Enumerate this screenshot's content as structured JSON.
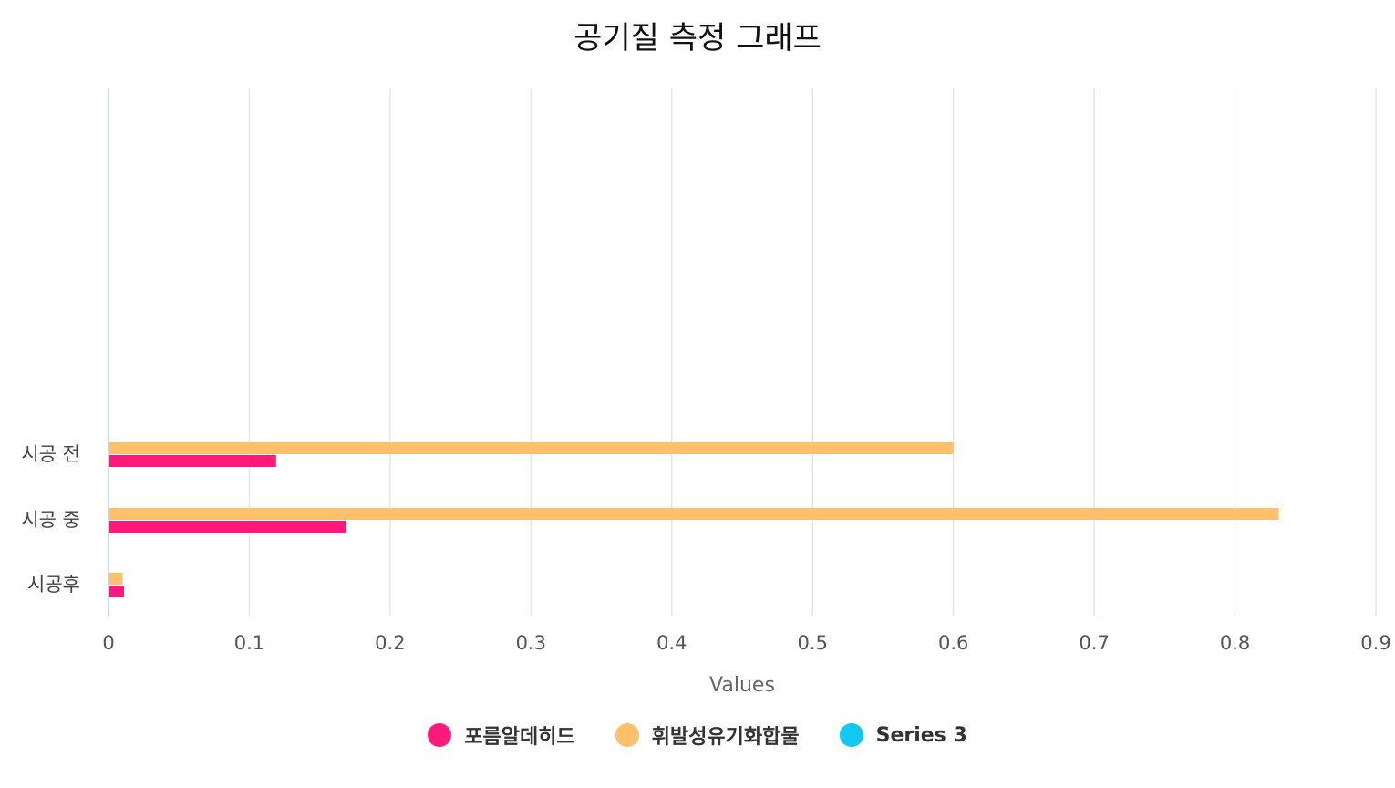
{
  "chart_data": {
    "type": "bar",
    "orientation": "horizontal",
    "title": "공기질 측정 그래프",
    "xlabel": "Values",
    "ylabel": "",
    "xlim": [
      0,
      0.9
    ],
    "x_ticks": [
      "0",
      "0.1",
      "0.2",
      "0.3",
      "0.4",
      "0.5",
      "0.6",
      "0.7",
      "0.8",
      "0.9"
    ],
    "categories": [
      "시공 전",
      "시공 중",
      "시공후"
    ],
    "series": [
      {
        "name": "포름알데히드",
        "color": "#ff1a7a",
        "values": [
          0.119,
          0.169,
          0.011
        ]
      },
      {
        "name": "휘발성유기화합물",
        "color": "#ffc06b",
        "values": [
          0.6,
          0.831,
          0.01
        ]
      },
      {
        "name": "Series 3",
        "color": "#10c8f0",
        "values": [
          null,
          null,
          null
        ]
      }
    ],
    "grid": true,
    "legend_position": "bottom-center"
  }
}
